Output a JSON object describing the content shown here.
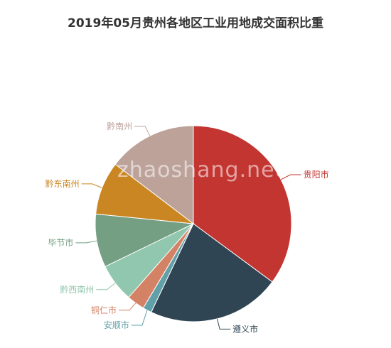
{
  "watermark": "zhaoshang.net",
  "chart_data": {
    "type": "pie",
    "title": "2019年05月贵州各地区工业用地成交面积比重",
    "slices": [
      {
        "label": "贵阳市",
        "value": 36.0,
        "color": "#c23531"
      },
      {
        "label": "遵义市",
        "value": 22.5,
        "color": "#2f4554"
      },
      {
        "label": "安顺市",
        "value": 1.5,
        "color": "#61a0a8"
      },
      {
        "label": "铜仁市",
        "value": 3.0,
        "color": "#d48265"
      },
      {
        "label": "黔西南州",
        "value": 6.5,
        "color": "#91c7ae"
      },
      {
        "label": "毕节市",
        "value": 9.0,
        "color": "#749f83"
      },
      {
        "label": "黔东南州",
        "value": 9.0,
        "color": "#ca8622"
      },
      {
        "label": "黔南州",
        "value": 15.0,
        "color": "#bda29a"
      }
    ]
  }
}
